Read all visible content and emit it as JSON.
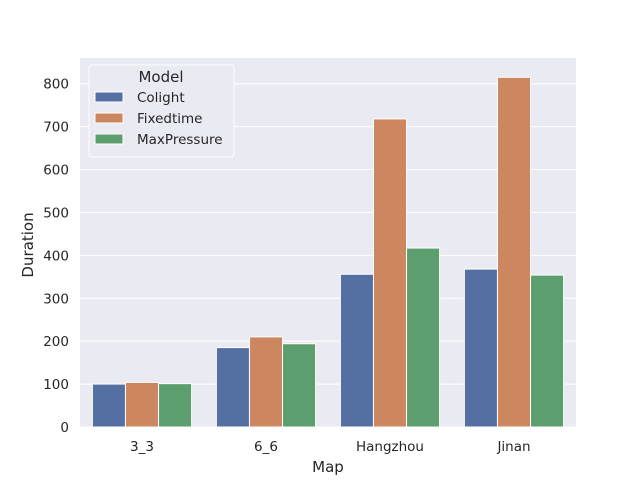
{
  "chart_data": {
    "type": "bar",
    "xlabel": "Map",
    "ylabel": "Duration",
    "categories": [
      "3_3",
      "6_6",
      "Hangzhou",
      "Jinan"
    ],
    "series": [
      {
        "name": "Colight",
        "color": "#5470a3",
        "values": [
          100,
          185,
          356,
          368
        ]
      },
      {
        "name": "Fixedtime",
        "color": "#cc8760",
        "values": [
          104,
          210,
          718,
          815
        ]
      },
      {
        "name": "MaxPressure",
        "color": "#5c9e6d",
        "values": [
          101,
          194,
          417,
          354
        ]
      }
    ],
    "ylim": [
      0,
      860
    ],
    "yticks": [
      0,
      100,
      200,
      300,
      400,
      500,
      600,
      700,
      800
    ],
    "grid": true,
    "legend": {
      "title": "Model",
      "placement": "top-left"
    },
    "background": "#eaeaf2"
  }
}
